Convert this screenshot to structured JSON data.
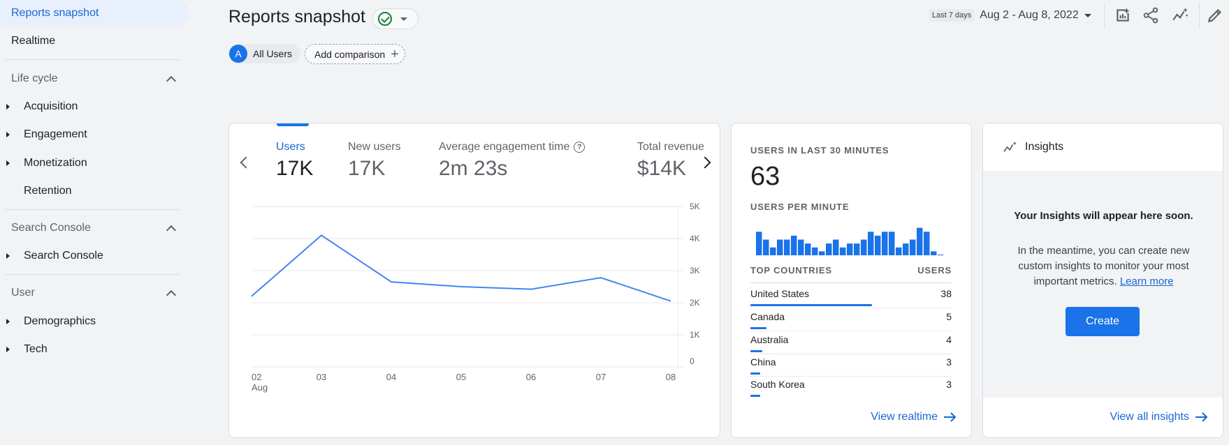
{
  "sidebar": {
    "active_item": "Reports snapshot",
    "realtime": "Realtime",
    "sections": [
      {
        "title": "Life cycle",
        "items": [
          "Acquisition",
          "Engagement",
          "Monetization",
          "Retention"
        ]
      },
      {
        "title": "Search Console",
        "items": [
          "Search Console"
        ]
      },
      {
        "title": "User",
        "items": [
          "Demographics",
          "Tech"
        ]
      }
    ]
  },
  "header": {
    "title": "Reports snapshot",
    "segment_avatar": "A",
    "segment_label": "All Users",
    "add_comparison": "Add comparison",
    "range_label": "Last 7 days",
    "range_value": "Aug 2 - Aug 8, 2022"
  },
  "metrics": [
    {
      "label": "Users",
      "value": "17K"
    },
    {
      "label": "New users",
      "value": "17K"
    },
    {
      "label": "Average engagement time",
      "value": "2m 23s"
    },
    {
      "label": "Total revenue",
      "value": "$14K"
    }
  ],
  "chart_data": [
    {
      "type": "line",
      "title": "Users",
      "categories": [
        "02",
        "03",
        "04",
        "05",
        "06",
        "07",
        "08"
      ],
      "x_sub_label": "Aug",
      "series": [
        {
          "name": "Users",
          "values": [
            2200,
            4100,
            2650,
            2500,
            2420,
            2780,
            2050
          ]
        }
      ],
      "y_ticks": [
        "0",
        "1K",
        "2K",
        "3K",
        "4K",
        "5K"
      ],
      "ylim": [
        0,
        5000
      ],
      "grid": true
    },
    {
      "type": "bar",
      "title": "USERS PER MINUTE",
      "values": [
        6,
        4,
        2,
        4,
        4,
        5,
        4,
        3,
        2,
        1,
        3,
        4,
        2,
        3,
        3,
        4,
        6,
        5,
        6,
        6,
        2,
        3,
        4,
        7,
        6,
        1,
        0
      ],
      "ylim": [
        0,
        8
      ]
    }
  ],
  "realtime": {
    "title": "USERS IN LAST 30 MINUTES",
    "value": "63",
    "per_minute": "USERS PER MINUTE",
    "col_country": "TOP COUNTRIES",
    "col_users": "USERS",
    "countries": [
      {
        "name": "United States",
        "users": "38",
        "share": 1.0
      },
      {
        "name": "Canada",
        "users": "5",
        "share": 0.13
      },
      {
        "name": "Australia",
        "users": "4",
        "share": 0.1
      },
      {
        "name": "China",
        "users": "3",
        "share": 0.08
      },
      {
        "name": "South Korea",
        "users": "3",
        "share": 0.08
      }
    ],
    "view_link": "View realtime"
  },
  "insights": {
    "title": "Insights",
    "heading": "Your Insights will appear here soon.",
    "body": "In the meantime, you can create new custom insights to monitor your most important metrics.",
    "learn_more": "Learn more",
    "create": "Create",
    "view_all": "View all insights"
  },
  "colors": {
    "accent": "#1a73e8",
    "line": "#4285f4",
    "success": "#188038"
  }
}
